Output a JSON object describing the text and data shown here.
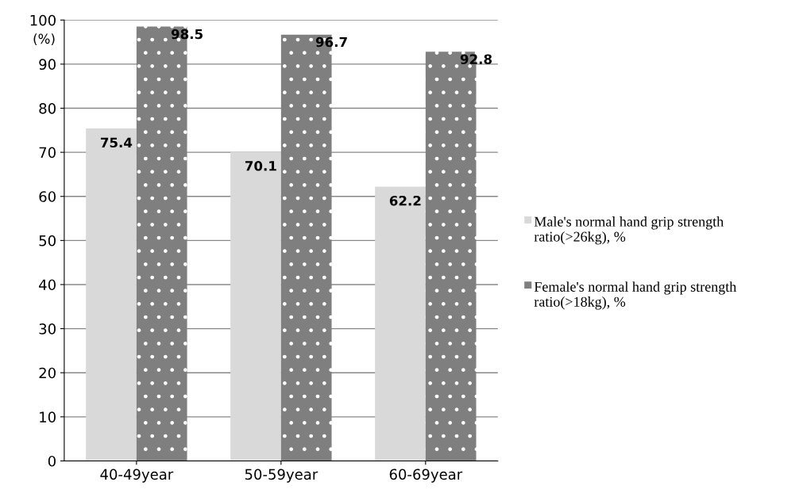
{
  "chart_data": {
    "type": "bar",
    "ylabel": "(%)",
    "categories": [
      "40-49year",
      "50-59year",
      "60-69year"
    ],
    "series": [
      {
        "name": "Male's normal hand grip strength ratio(>26kg), %",
        "color": "#d9d9d9",
        "values": [
          75.4,
          70.1,
          62.2
        ]
      },
      {
        "name": "Female's normal hand grip strength ratio(>18kg), %",
        "color": "#7f7f7f",
        "values": [
          98.5,
          96.7,
          92.8
        ]
      }
    ],
    "ylim": [
      0,
      100
    ],
    "yticks": [
      0,
      10,
      20,
      30,
      40,
      50,
      60,
      70,
      80,
      90,
      100
    ],
    "grid": "y",
    "legend": "right",
    "data_labels": true
  }
}
